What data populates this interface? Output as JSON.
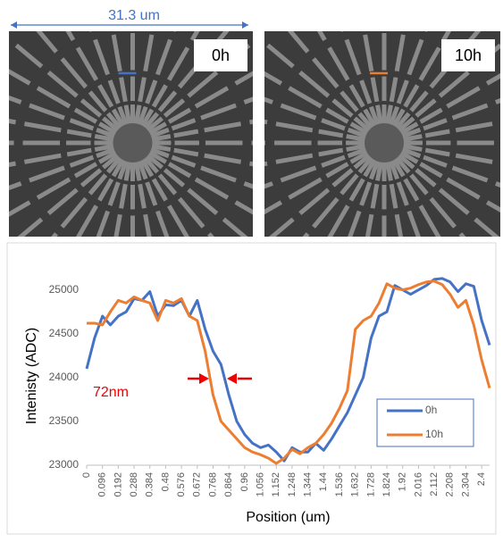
{
  "images": {
    "scale_label": "31.3 um",
    "panels": [
      {
        "label": "0h",
        "marker_color": "#4472c4"
      },
      {
        "label": "10h",
        "marker_color": "#ed7d31"
      }
    ]
  },
  "chart_data": {
    "type": "line",
    "x_label": "Position (um)",
    "y_label": "Intenisty (ADC)",
    "annotation": "72nm",
    "x": [
      0,
      0.048,
      0.096,
      0.144,
      0.192,
      0.24,
      0.288,
      0.336,
      0.384,
      0.432,
      0.48,
      0.528,
      0.576,
      0.624,
      0.672,
      0.72,
      0.768,
      0.816,
      0.864,
      0.912,
      0.96,
      1.008,
      1.056,
      1.104,
      1.152,
      1.2,
      1.248,
      1.296,
      1.344,
      1.392,
      1.44,
      1.488,
      1.536,
      1.584,
      1.632,
      1.68,
      1.728,
      1.776,
      1.824,
      1.872,
      1.92,
      1.968,
      2.016,
      2.064,
      2.112,
      2.16,
      2.208,
      2.256,
      2.304,
      2.352,
      2.4,
      2.448
    ],
    "series": [
      {
        "name": "0h",
        "color": "#4472c4",
        "values": [
          24100,
          24450,
          24700,
          24600,
          24700,
          24750,
          24900,
          24880,
          24980,
          24700,
          24830,
          24820,
          24880,
          24700,
          24880,
          24550,
          24300,
          24150,
          23800,
          23500,
          23350,
          23250,
          23200,
          23230,
          23150,
          23050,
          23200,
          23150,
          23150,
          23250,
          23170,
          23300,
          23450,
          23600,
          23800,
          24000,
          24450,
          24700,
          24750,
          25050,
          25000,
          24950,
          25000,
          25050,
          25120,
          25130,
          25090,
          24980,
          25070,
          25040,
          24650,
          24370
        ]
      },
      {
        "name": "10h",
        "color": "#ed7d31",
        "values": [
          24620,
          24620,
          24600,
          24750,
          24880,
          24850,
          24920,
          24880,
          24850,
          24650,
          24880,
          24850,
          24900,
          24700,
          24650,
          24300,
          23800,
          23500,
          23400,
          23300,
          23200,
          23150,
          23120,
          23080,
          23020,
          23080,
          23180,
          23130,
          23200,
          23250,
          23350,
          23480,
          23650,
          23850,
          24550,
          24650,
          24700,
          24850,
          25070,
          25020,
          25000,
          25020,
          25060,
          25090,
          25100,
          25060,
          24950,
          24800,
          24880,
          24600,
          24200,
          23880
        ]
      }
    ],
    "xlim": [
      0,
      2.448
    ],
    "xticks": [
      0,
      0.096,
      0.192,
      0.288,
      0.384,
      0.48,
      0.576,
      0.672,
      0.768,
      0.864,
      0.96,
      1.056,
      1.152,
      1.248,
      1.344,
      1.44,
      1.536,
      1.632,
      1.728,
      1.824,
      1.92,
      2.016,
      2.112,
      2.208,
      2.304,
      2.4
    ],
    "ylim": [
      23000,
      25200
    ],
    "yticks": [
      23000,
      23500,
      24000,
      24500,
      25000
    ],
    "grid": false,
    "legend": "lower-right"
  }
}
